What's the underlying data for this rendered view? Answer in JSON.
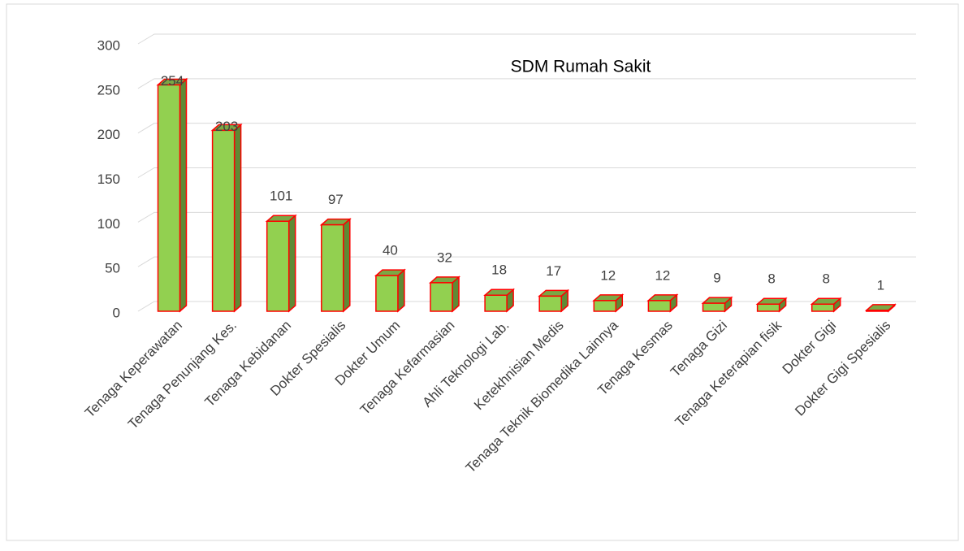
{
  "chart_data": {
    "type": "bar3d",
    "title": "SDM Rumah Sakit",
    "categories": [
      "Tenaga Keperawatan",
      "Tenaga Penunjang Kes.",
      "Tenaga Kebidanan",
      "Dokter Spesialis",
      "Dokter Umum",
      "Tenaga Kefarmasian",
      "Ahli Teknologi Lab.",
      "Ketekhnisian Medis",
      "Tenaga Teknik Biomedika Lainnya",
      "Tenaga Kesmas",
      "Tenaga Gizi",
      "Tenaga Keterapian fisik",
      "Dokter Gigi",
      "Dokter Gigi Spesialis"
    ],
    "values": [
      254,
      203,
      101,
      97,
      40,
      32,
      18,
      17,
      12,
      12,
      9,
      8,
      8,
      1
    ],
    "color": "#92d050",
    "edge_color": "#ff0000",
    "ylim": [
      0,
      300
    ],
    "yticks": [
      0,
      50,
      100,
      150,
      200,
      250,
      300
    ],
    "grid": true
  }
}
